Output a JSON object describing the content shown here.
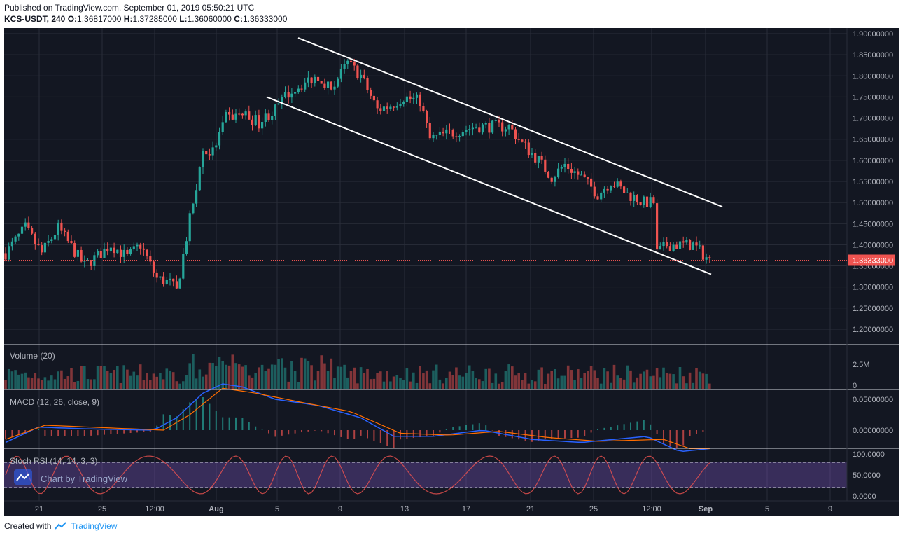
{
  "header": {
    "published": "Published on TradingView.com, September 01, 2019 05:50:21 UTC",
    "symbol": "KCS-USDT, 240",
    "ohlc": [
      {
        "k": "O:",
        "v": "1.36817000"
      },
      {
        "k": "H:",
        "v": "1.37285000"
      },
      {
        "k": "L:",
        "v": "1.36060000"
      },
      {
        "k": "C:",
        "v": "1.36333000"
      }
    ]
  },
  "footer": {
    "created": "Created with",
    "brand": "TradingView"
  },
  "watermark": "Chart by TradingView",
  "colors": {
    "bg": "#131722",
    "up": "#26a69a",
    "down": "#ef5350",
    "grid": "#2a2e39",
    "axis_text": "#b2b5be",
    "macd": "#2962ff",
    "signal": "#ff6d00",
    "rsi": "#7e57c2",
    "price_label": "#ef5350"
  },
  "chart_data": {
    "type": "candlestick",
    "x_ticks": [
      "21",
      "25",
      "12:00",
      "Aug",
      "5",
      "9",
      "13",
      "17",
      "21",
      "25",
      "12:00",
      "Sep",
      "5",
      "9"
    ],
    "price_axis": {
      "ylim": [
        1.18,
        1.9
      ],
      "ticks": [
        "1.90000000",
        "1.85000000",
        "1.80000000",
        "1.75000000",
        "1.70000000",
        "1.65000000",
        "1.60000000",
        "1.55000000",
        "1.50000000",
        "1.45000000",
        "1.40000000",
        "1.35000000",
        "1.30000000",
        "1.25000000",
        "1.20000000"
      ]
    },
    "last_price": "1.36333000",
    "close_path": [
      [
        0,
        1.38
      ],
      [
        6,
        1.44
      ],
      [
        11,
        1.38
      ],
      [
        16,
        1.44
      ],
      [
        24,
        1.35
      ],
      [
        29,
        1.38
      ],
      [
        32,
        1.4
      ],
      [
        37,
        1.37
      ],
      [
        41,
        1.4
      ],
      [
        46,
        1.32
      ],
      [
        50,
        1.31
      ],
      [
        52,
        1.29
      ],
      [
        56,
        1.46
      ],
      [
        60,
        1.62
      ],
      [
        63,
        1.62
      ],
      [
        67,
        1.7
      ],
      [
        72,
        1.71
      ],
      [
        77,
        1.69
      ],
      [
        82,
        1.72
      ],
      [
        86,
        1.76
      ],
      [
        90,
        1.78
      ],
      [
        95,
        1.8
      ],
      [
        99,
        1.77
      ],
      [
        104,
        1.83
      ],
      [
        108,
        1.8
      ],
      [
        113,
        1.72
      ],
      [
        117,
        1.73
      ],
      [
        121,
        1.75
      ],
      [
        126,
        1.74
      ],
      [
        129,
        1.65
      ],
      [
        133,
        1.66
      ],
      [
        138,
        1.67
      ],
      [
        143,
        1.68
      ],
      [
        148,
        1.68
      ],
      [
        153,
        1.68
      ],
      [
        157,
        1.64
      ],
      [
        162,
        1.6
      ],
      [
        166,
        1.56
      ],
      [
        170,
        1.59
      ],
      [
        175,
        1.56
      ],
      [
        180,
        1.52
      ],
      [
        184,
        1.55
      ],
      [
        189,
        1.52
      ],
      [
        194,
        1.5
      ],
      [
        197,
        1.5
      ],
      [
        198,
        1.38
      ],
      [
        201,
        1.4
      ],
      [
        205,
        1.4
      ],
      [
        209,
        1.4
      ],
      [
        213,
        1.37
      ],
      [
        214,
        1.363
      ]
    ],
    "channel_lines": [
      {
        "from": [
          "Jul 31",
          1.89
        ],
        "to": [
          "Sep 1",
          1.49
        ]
      },
      {
        "from": [
          "Jul 28",
          1.75
        ],
        "to": [
          "Aug 31",
          1.33
        ]
      }
    ],
    "volume": {
      "label": "Volume (20)",
      "ticks": [
        "2.5M",
        "0"
      ]
    },
    "macd": {
      "label": "MACD (12, 26, close, 9)",
      "ticks": [
        "0.05000000",
        "0.00000000"
      ],
      "macd_path": [
        [
          0,
          -0.02
        ],
        [
          10,
          0.005
        ],
        [
          25,
          0.002
        ],
        [
          45,
          0.0
        ],
        [
          52,
          0.02
        ],
        [
          60,
          0.06
        ],
        [
          66,
          0.075
        ],
        [
          72,
          0.07
        ],
        [
          82,
          0.05
        ],
        [
          95,
          0.04
        ],
        [
          108,
          0.02
        ],
        [
          118,
          -0.01
        ],
        [
          130,
          -0.01
        ],
        [
          145,
          0.0
        ],
        [
          160,
          -0.015
        ],
        [
          175,
          -0.02
        ],
        [
          195,
          -0.01
        ],
        [
          205,
          -0.035
        ],
        [
          214,
          -0.03
        ]
      ],
      "signal_path": [
        [
          0,
          -0.015
        ],
        [
          12,
          0.008
        ],
        [
          30,
          0.004
        ],
        [
          48,
          0.0
        ],
        [
          56,
          0.025
        ],
        [
          66,
          0.068
        ],
        [
          76,
          0.06
        ],
        [
          90,
          0.045
        ],
        [
          105,
          0.03
        ],
        [
          120,
          -0.005
        ],
        [
          135,
          -0.008
        ],
        [
          150,
          -0.002
        ],
        [
          165,
          -0.012
        ],
        [
          180,
          -0.018
        ],
        [
          200,
          -0.015
        ],
        [
          208,
          -0.03
        ],
        [
          214,
          -0.03
        ]
      ]
    },
    "stoch_rsi": {
      "label": "Stoch RSI (14, 14, 3, 3)",
      "ticks": [
        "100.0000",
        "50.0000",
        "0.0000"
      ],
      "bands": [
        80,
        20
      ]
    }
  }
}
